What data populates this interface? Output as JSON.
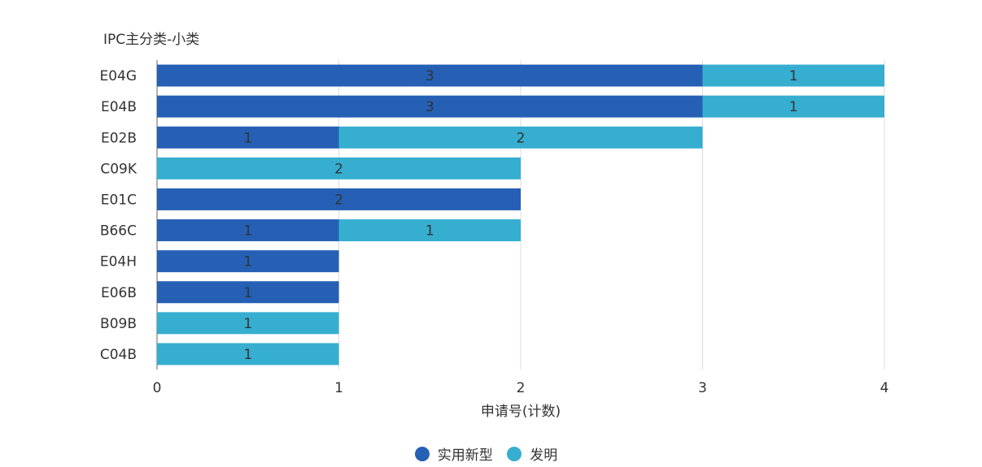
{
  "chart_data": {
    "type": "bar",
    "orientation": "horizontal",
    "stacked": true,
    "title": "",
    "ylabel": "IPC主分类-小类",
    "xlabel": "申请号(计数)",
    "categories": [
      "E04G",
      "E04B",
      "E02B",
      "C09K",
      "E01C",
      "B66C",
      "E04H",
      "E06B",
      "B09B",
      "C04B"
    ],
    "series": [
      {
        "name": "实用新型",
        "color": "#2660b5",
        "values": [
          3,
          3,
          1,
          0,
          2,
          1,
          1,
          1,
          0,
          0
        ]
      },
      {
        "name": "发明",
        "color": "#36aed0",
        "values": [
          1,
          1,
          2,
          2,
          0,
          1,
          0,
          0,
          1,
          1
        ]
      }
    ],
    "xlim": [
      0,
      4
    ],
    "xticks": [
      "0",
      "1",
      "2",
      "3",
      "4"
    ],
    "grid": true,
    "legend": "bottom-center"
  }
}
